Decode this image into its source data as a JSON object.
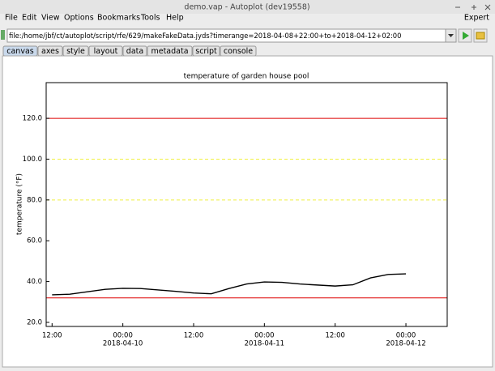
{
  "window": {
    "title": "demo.vap - Autoplot (dev19558)"
  },
  "menu": [
    "File",
    "Edit",
    "View",
    "Options",
    "Bookmarks",
    "Tools",
    "Help"
  ],
  "menu_right": "Expert",
  "address": "file:/home/jbf/ct/autoplot/script/rfe/629/makeFakeData.jyds?timerange=2018-04-08+22:00+to+2018-04-12+02:00",
  "tabs": [
    "canvas",
    "axes",
    "style",
    "layout",
    "data",
    "metadata",
    "script",
    "console"
  ],
  "chart_data": {
    "type": "line",
    "title": "temperature of garden house pool",
    "y_label": "temperature (°F)",
    "x": [
      "2018-04-09 12:00",
      "2018-04-09 15:00",
      "2018-04-09 18:00",
      "2018-04-09 21:00",
      "2018-04-10 00:00",
      "2018-04-10 03:00",
      "2018-04-10 06:00",
      "2018-04-10 09:00",
      "2018-04-10 12:00",
      "2018-04-10 15:00",
      "2018-04-10 18:00",
      "2018-04-10 21:00",
      "2018-04-11 00:00",
      "2018-04-11 03:00",
      "2018-04-11 06:00",
      "2018-04-11 09:00",
      "2018-04-11 12:00",
      "2018-04-11 15:00",
      "2018-04-11 18:00",
      "2018-04-11 21:00",
      "2018-04-12 00:00"
    ],
    "series": [
      {
        "color": "#000000",
        "values": [
          33.5,
          33.8,
          35.0,
          36.2,
          36.7,
          36.6,
          35.9,
          35.2,
          34.4,
          34.0,
          36.6,
          38.8,
          39.8,
          39.6,
          38.8,
          38.3,
          37.8,
          38.4,
          41.8,
          43.5,
          43.8
        ]
      }
    ],
    "xlim": [
      "2018-04-09 11:00",
      "2018-04-12 07:00"
    ],
    "xticks": [
      {
        "value": "2018-04-09 12:00",
        "label": "12:00"
      },
      {
        "value": "2018-04-10 00:00",
        "label": "00:00"
      },
      {
        "value": "2018-04-10 12:00",
        "label": "12:00"
      },
      {
        "value": "2018-04-11 00:00",
        "label": "00:00"
      },
      {
        "value": "2018-04-11 12:00",
        "label": "12:00"
      },
      {
        "value": "2018-04-12 00:00",
        "label": "00:00"
      }
    ],
    "xtick_dates": [
      {
        "value": "2018-04-10 00:00",
        "label": "2018-04-10"
      },
      {
        "value": "2018-04-11 00:00",
        "label": "2018-04-11"
      },
      {
        "value": "2018-04-12 00:00",
        "label": "2018-04-12"
      }
    ],
    "ylim": [
      18,
      137.5
    ],
    "yticks": [
      {
        "value": 20,
        "label": "20.0"
      },
      {
        "value": 40,
        "label": "40.0"
      },
      {
        "value": 60,
        "label": "60.0"
      },
      {
        "value": 80,
        "label": "80.0"
      },
      {
        "value": 100,
        "label": "100.0"
      },
      {
        "value": 120,
        "label": "120.0"
      }
    ],
    "reference_lines": [
      {
        "value": 120,
        "color": "#dd0000",
        "style": "solid"
      },
      {
        "value": 100,
        "color": "#f0f040",
        "style": "dashed"
      },
      {
        "value": 80,
        "color": "#f0f040",
        "style": "dashed"
      },
      {
        "value": 32,
        "color": "#dd0000",
        "style": "solid"
      }
    ]
  }
}
